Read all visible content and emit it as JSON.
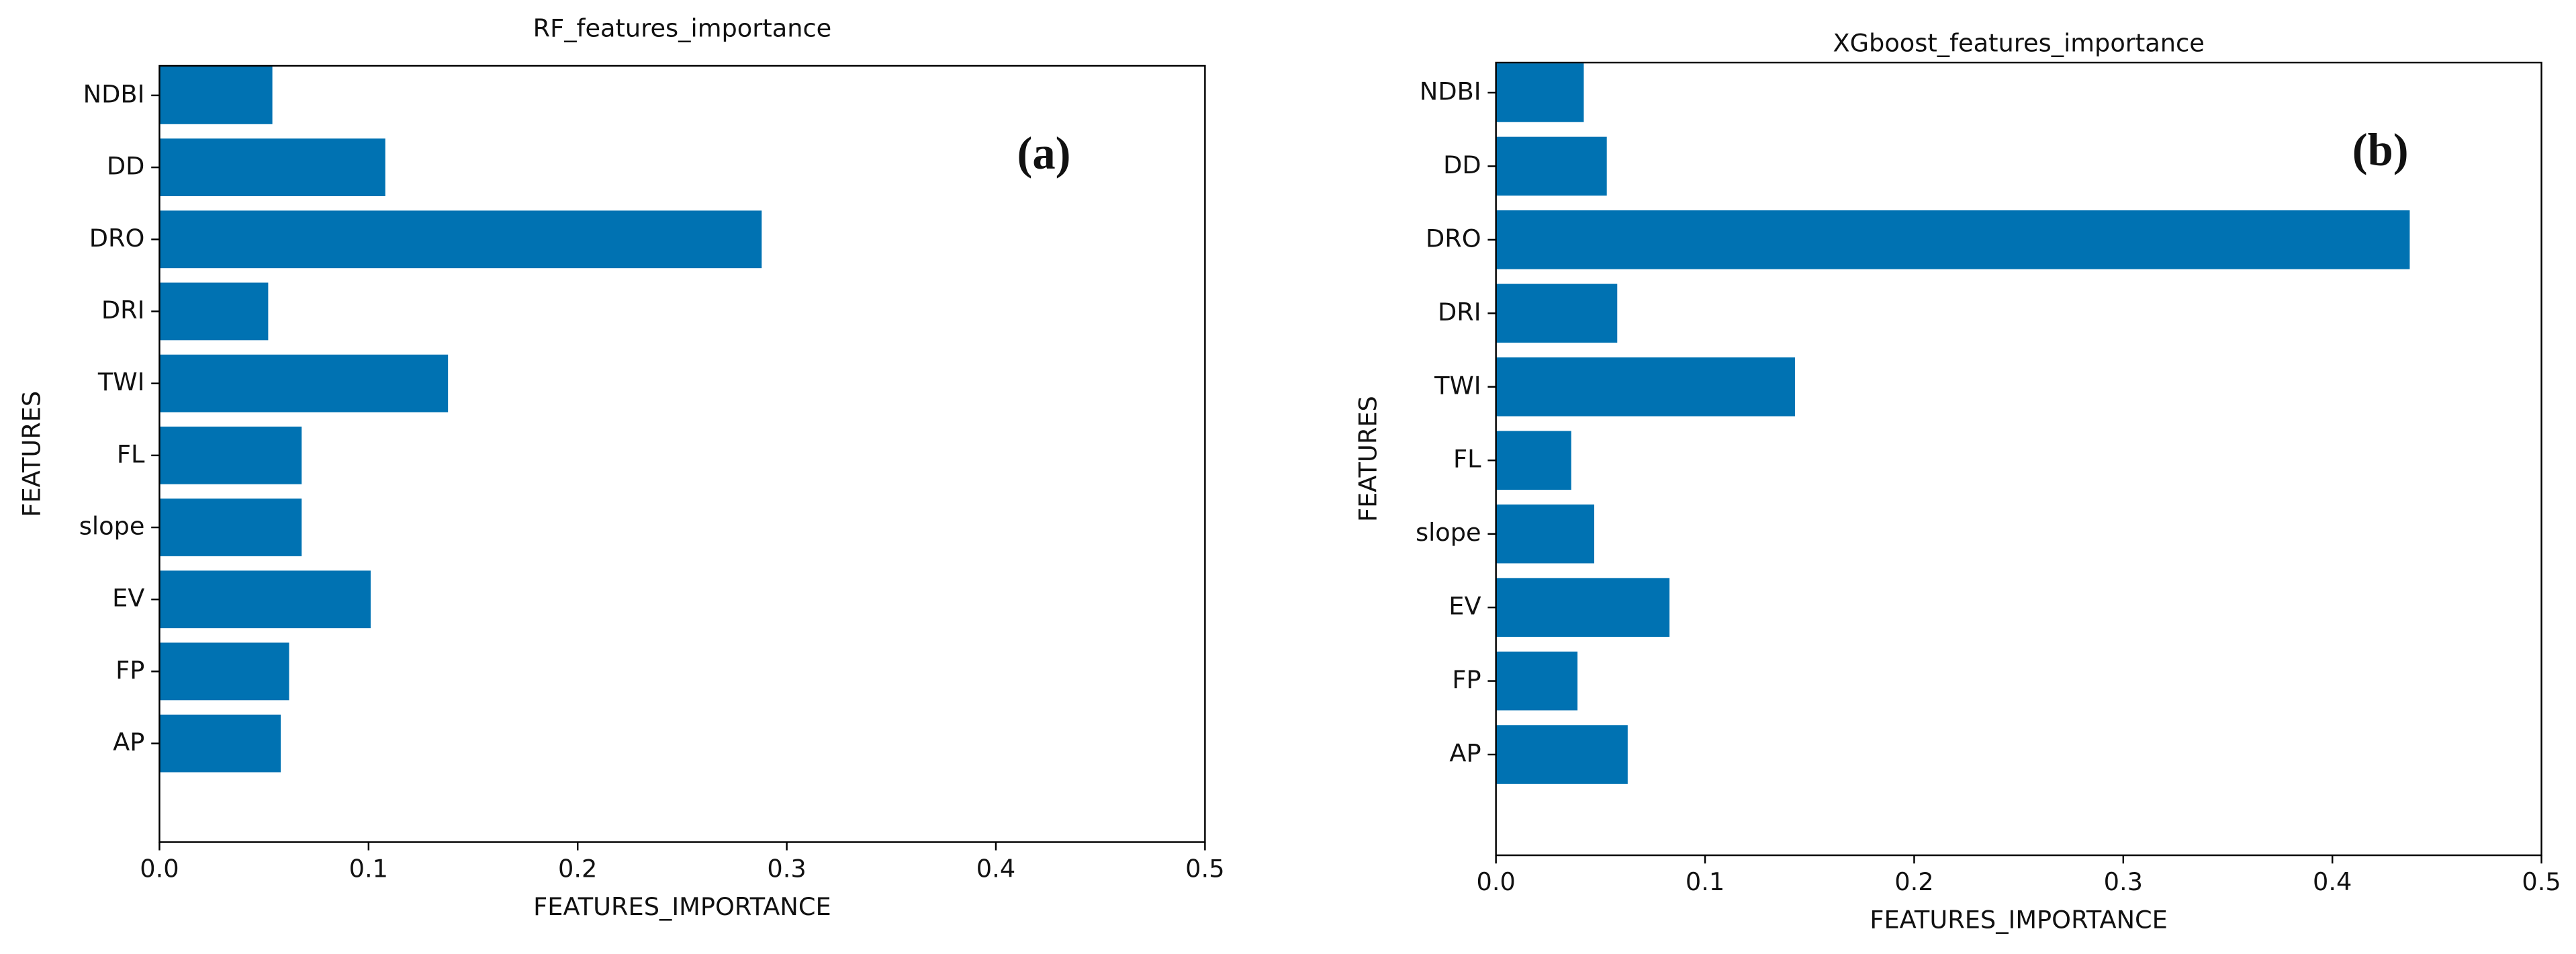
{
  "chart_data": [
    {
      "type": "barh",
      "title": "RF_features_importance",
      "x_label": "FEATURES_IMPORTANCE",
      "y_label": "FEATURES",
      "annotation": "(a)",
      "categories": [
        "AP",
        "FP",
        "EV",
        "slope",
        "FL",
        "TWI",
        "DRI",
        "DRO",
        "DD",
        "NDBI"
      ],
      "values": [
        0.058,
        0.062,
        0.101,
        0.068,
        0.068,
        0.138,
        0.052,
        0.288,
        0.108,
        0.054
      ],
      "color": "#0072b2",
      "xlim": [
        0,
        0.5
      ],
      "xticks": [
        {
          "value": 0,
          "label": "0.0"
        },
        0.1,
        0.2,
        0.3,
        0.4,
        0.5
      ]
    },
    {
      "type": "barh",
      "title": "XGboost_features_importance",
      "x_label": "FEATURES_IMPORTANCE",
      "y_label": "FEATURES",
      "annotation": "(b)",
      "categories": [
        "AP",
        "FP",
        "EV",
        "slope",
        "FL",
        "TWI",
        "DRI",
        "DRO",
        "DD",
        "NDBI"
      ],
      "values": [
        0.063,
        0.039,
        0.083,
        0.047,
        0.036,
        0.143,
        0.058,
        0.437,
        0.053,
        0.042
      ],
      "color": "#0072b2",
      "xlim": [
        0,
        0.5
      ],
      "xticks": [
        {
          "value": 0,
          "label": "0.0"
        },
        0.1,
        0.2,
        0.3,
        0.4,
        0.5
      ]
    }
  ]
}
